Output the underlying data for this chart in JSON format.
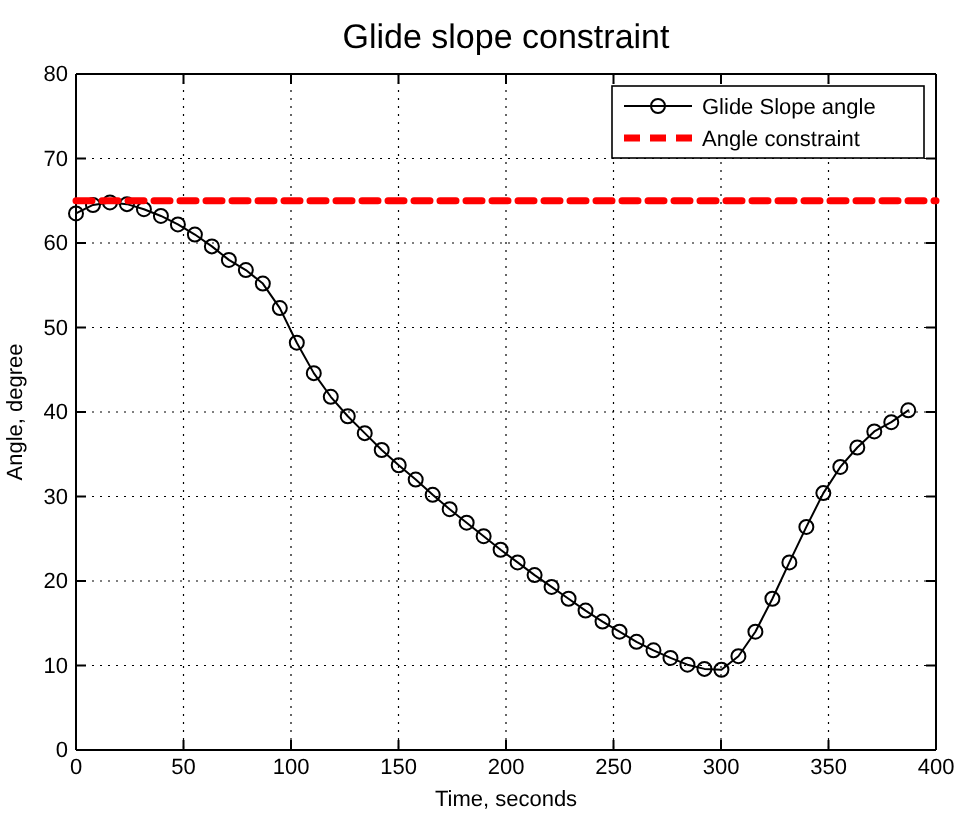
{
  "chart_data": {
    "type": "line",
    "title": "Glide slope constraint",
    "xlabel": "Time,  seconds",
    "ylabel": "Angle, degree",
    "xlim": [
      0,
      400
    ],
    "xticks": [
      0,
      50,
      100,
      150,
      200,
      250,
      300,
      350,
      400
    ],
    "ylim": [
      0,
      80
    ],
    "yticks": [
      0,
      10,
      20,
      30,
      40,
      50,
      60,
      70,
      80
    ],
    "grid": true,
    "legend": "top right",
    "series": [
      {
        "name": "Glide Slope angle",
        "color": "#000000",
        "marker": "circle",
        "line_style": "solid",
        "x": [
          0,
          7.9,
          15.8,
          23.7,
          31.6,
          39.5,
          47.4,
          55.3,
          63.2,
          71.1,
          79,
          86.9,
          94.8,
          102.7,
          110.6,
          118.5,
          126.4,
          134.3,
          142.2,
          150.1,
          158,
          165.9,
          173.8,
          181.7,
          189.6,
          197.5,
          205.4,
          213.3,
          221.2,
          229.1,
          237,
          244.9,
          252.8,
          260.7,
          268.6,
          276.5,
          284.4,
          292.3,
          300.2,
          308.1,
          316,
          323.9,
          331.8,
          339.7,
          347.6,
          355.5,
          363.4,
          371.3,
          379.2,
          387.1
        ],
        "values": [
          63.5,
          64.5,
          64.8,
          64.6,
          64,
          63.2,
          62.2,
          61,
          59.6,
          58,
          56.8,
          55.2,
          52.3,
          48.2,
          44.6,
          41.8,
          39.5,
          37.5,
          35.5,
          33.7,
          32,
          30.2,
          28.5,
          26.9,
          25.3,
          23.7,
          22.2,
          20.7,
          19.3,
          17.9,
          16.5,
          15.2,
          14,
          12.8,
          11.8,
          10.9,
          10.1,
          9.6,
          9.5,
          11.1,
          14,
          17.9,
          22.2,
          26.4,
          30.4,
          33.5,
          35.8,
          37.7,
          38.8,
          40.2
        ]
      },
      {
        "name": "Angle constraint",
        "color": "#ff0000",
        "marker": "none",
        "line_style": "dashed",
        "x": [
          0,
          400
        ],
        "values": [
          65,
          65
        ]
      }
    ]
  }
}
